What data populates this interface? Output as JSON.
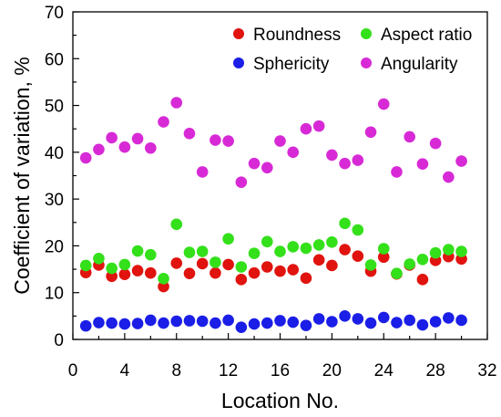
{
  "chart_data": {
    "type": "scatter",
    "xlabel": "Location No.",
    "ylabel": "Coefficient of variation, %",
    "xlim": [
      0,
      32
    ],
    "ylim": [
      0,
      70
    ],
    "xticks": [
      "0",
      "4",
      "8",
      "12",
      "16",
      "20",
      "24",
      "28",
      "32"
    ],
    "yticks": [
      "0",
      "10",
      "20",
      "30",
      "40",
      "50",
      "60",
      "70"
    ],
    "grid": false,
    "legend_position": "top-right",
    "series": [
      {
        "name": "Roundness",
        "color": "#e0130f",
        "x": [
          1,
          2,
          3,
          4,
          5,
          6,
          7,
          8,
          9,
          10,
          11,
          12,
          13,
          14,
          15,
          16,
          17,
          18,
          19,
          20,
          21,
          22,
          23,
          24,
          25,
          26,
          27,
          28,
          29,
          30
        ],
        "y": [
          14.3,
          15.9,
          13.5,
          13.9,
          14.7,
          14.2,
          11.3,
          16.3,
          14.1,
          16.2,
          14.2,
          16,
          12.8,
          14.2,
          15.5,
          14.6,
          14.9,
          13.1,
          17,
          15.8,
          19.2,
          17.8,
          14.6,
          17.6,
          14,
          15.9,
          12.8,
          16.9,
          17.7,
          17.2
        ]
      },
      {
        "name": "Aspect ratio",
        "color": "#33e01a",
        "x": [
          1,
          2,
          3,
          4,
          5,
          6,
          7,
          8,
          9,
          10,
          11,
          12,
          13,
          14,
          15,
          16,
          17,
          18,
          19,
          20,
          21,
          22,
          23,
          24,
          25,
          26,
          27,
          28,
          29,
          30
        ],
        "y": [
          15.8,
          17.3,
          15.2,
          16,
          18.9,
          18.1,
          13,
          24.6,
          18.6,
          18.8,
          16.5,
          21.5,
          15.5,
          18.4,
          20.9,
          18.8,
          19.8,
          19.5,
          20.2,
          20.8,
          24.8,
          23.4,
          15.9,
          19.4,
          14.1,
          16.1,
          17.1,
          18.5,
          19.2,
          18.8
        ]
      },
      {
        "name": "Sphericity",
        "color": "#1a1ee6",
        "x": [
          1,
          2,
          3,
          4,
          5,
          6,
          7,
          8,
          9,
          10,
          11,
          12,
          13,
          14,
          15,
          16,
          17,
          18,
          19,
          20,
          21,
          22,
          23,
          24,
          25,
          26,
          27,
          28,
          29,
          30
        ],
        "y": [
          2.9,
          3.6,
          3.5,
          3.3,
          3.4,
          4.1,
          3.5,
          3.9,
          4,
          3.9,
          3.5,
          4.1,
          2.6,
          3.3,
          3.5,
          4,
          3.7,
          3,
          4.4,
          3.8,
          5,
          4.4,
          3.5,
          4.7,
          3.6,
          4.1,
          3.1,
          3.8,
          4.6,
          4.1
        ]
      },
      {
        "name": "Angularity",
        "color": "#d72ad6",
        "x": [
          1,
          2,
          3,
          4,
          5,
          6,
          7,
          8,
          9,
          10,
          11,
          12,
          13,
          14,
          15,
          16,
          17,
          18,
          19,
          20,
          21,
          22,
          23,
          24,
          25,
          26,
          27,
          28,
          29,
          30
        ],
        "y": [
          38.8,
          40.6,
          43.1,
          41.1,
          42.9,
          40.9,
          46.5,
          50.6,
          44,
          35.8,
          42.6,
          42.4,
          33.6,
          37.6,
          36.7,
          42.4,
          40,
          45,
          45.6,
          39.4,
          37.6,
          38.3,
          44.3,
          50.3,
          35.8,
          43.3,
          37.5,
          41.9,
          34.7,
          38.1
        ]
      }
    ],
    "legend": [
      {
        "label": "Roundness",
        "color": "#e0130f"
      },
      {
        "label": "Aspect ratio",
        "color": "#33e01a"
      },
      {
        "label": "Sphericity",
        "color": "#1a1ee6"
      },
      {
        "label": "Angularity",
        "color": "#d72ad6"
      }
    ]
  }
}
